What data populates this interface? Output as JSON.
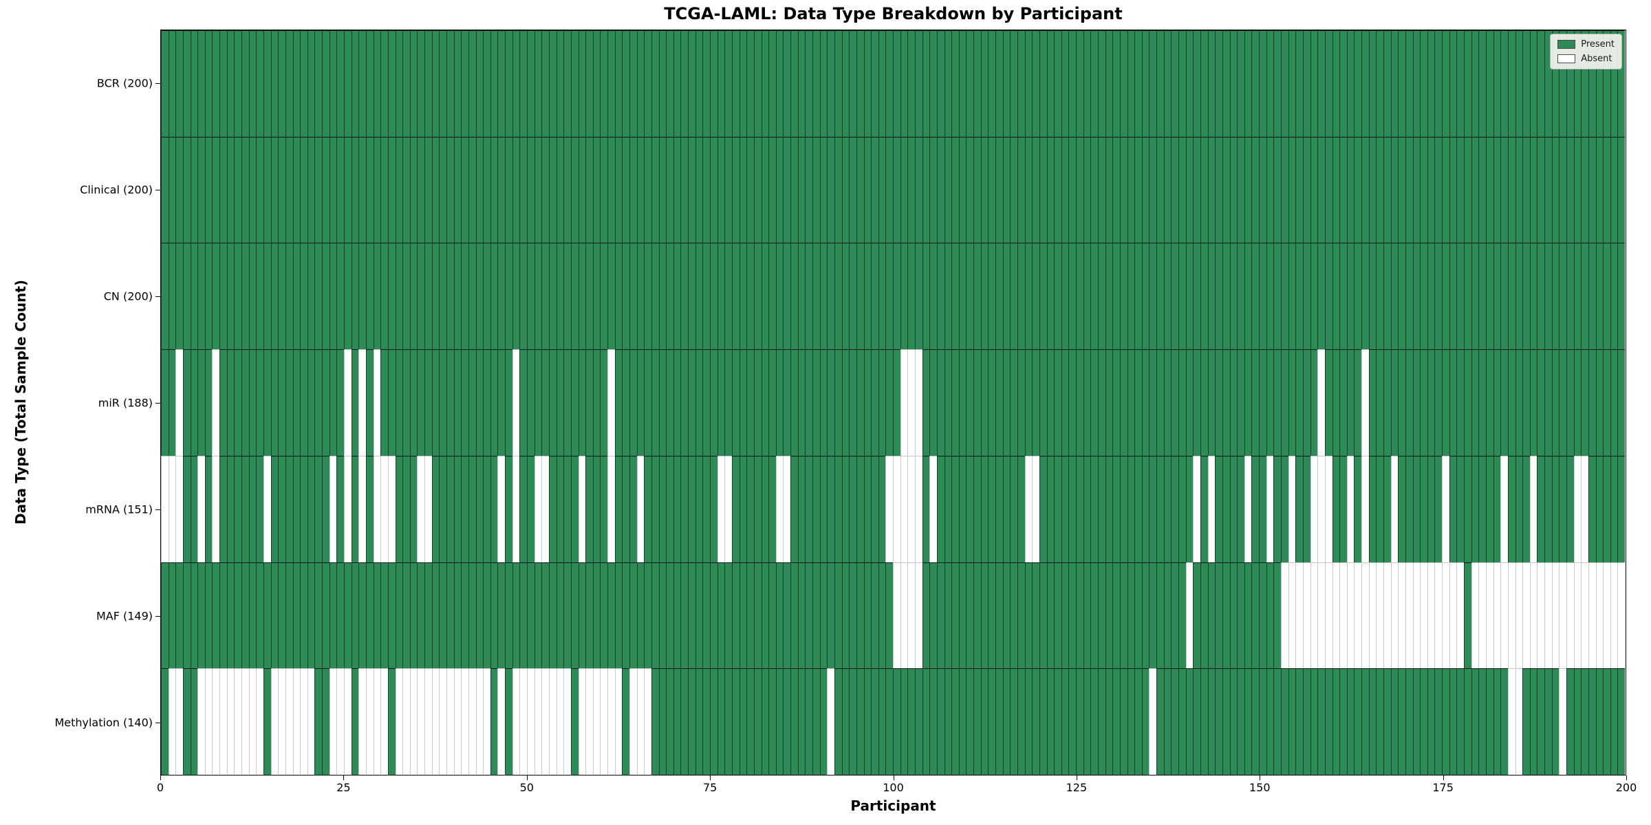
{
  "figure": {
    "title": "TCGA-LAML: Data Type Breakdown by Participant",
    "xlabel": "Participant",
    "ylabel": "Data Type (Total Sample Count)"
  },
  "legend": {
    "present_label": "Present",
    "absent_label": "Absent"
  },
  "colors": {
    "present": "#2e8b57",
    "absent": "#ffffff",
    "present_edge": "rgba(0,0,0,0.55)",
    "absent_edge": "#c8c8c8"
  },
  "chart_data": {
    "type": "heatmap",
    "title": "TCGA-LAML: Data Type Breakdown by Participant",
    "xlabel": "Participant",
    "ylabel": "Data Type (Total Sample Count)",
    "legend_entries": [
      "Present",
      "Absent"
    ],
    "legend_position": "upper right",
    "n_participants": 200,
    "x_ticks": [
      0,
      25,
      50,
      75,
      100,
      125,
      150,
      175,
      200
    ],
    "grid": true,
    "rows": [
      {
        "label": "BCR",
        "total": 200,
        "tick_label": "BCR (200)",
        "absent": []
      },
      {
        "label": "Clinical",
        "total": 200,
        "tick_label": "Clinical (200)",
        "absent": []
      },
      {
        "label": "CN",
        "total": 200,
        "tick_label": "CN (200)",
        "absent": []
      },
      {
        "label": "miR",
        "total": 188,
        "tick_label": "miR (188)",
        "absent": [
          2,
          7,
          25,
          27,
          29,
          48,
          61,
          101,
          102,
          103,
          158,
          164
        ]
      },
      {
        "label": "mRNA",
        "total": 151,
        "tick_label": "mRNA (151)",
        "absent": [
          0,
          1,
          2,
          5,
          7,
          14,
          23,
          25,
          27,
          29,
          30,
          31,
          35,
          36,
          46,
          48,
          51,
          52,
          57,
          61,
          65,
          76,
          77,
          84,
          85,
          99,
          100,
          101,
          102,
          103,
          105,
          118,
          119,
          141,
          143,
          148,
          151,
          154,
          157,
          158,
          159,
          162,
          164,
          168,
          175,
          183,
          187,
          193,
          194
        ]
      },
      {
        "label": "MAF",
        "total": 149,
        "tick_label": "MAF (149)",
        "absent": [
          100,
          101,
          102,
          103,
          140,
          153,
          154,
          155,
          156,
          157,
          158,
          159,
          160,
          161,
          162,
          163,
          164,
          165,
          166,
          167,
          168,
          169,
          170,
          171,
          172,
          173,
          174,
          175,
          176,
          177,
          179,
          180,
          181,
          182,
          183,
          184,
          185,
          186,
          187,
          188,
          189,
          190,
          191,
          192,
          193,
          194,
          195,
          196,
          197,
          198,
          199
        ]
      },
      {
        "label": "Methylation",
        "total": 140,
        "tick_label": "Methylation (140)",
        "absent": [
          1,
          2,
          5,
          6,
          7,
          8,
          9,
          10,
          11,
          12,
          13,
          15,
          16,
          17,
          18,
          19,
          20,
          23,
          24,
          25,
          27,
          28,
          29,
          30,
          32,
          33,
          34,
          35,
          36,
          37,
          38,
          39,
          40,
          41,
          42,
          43,
          44,
          46,
          48,
          49,
          50,
          51,
          52,
          53,
          54,
          55,
          57,
          58,
          59,
          60,
          61,
          62,
          64,
          65,
          66,
          91,
          135,
          184,
          185,
          191
        ]
      }
    ]
  }
}
